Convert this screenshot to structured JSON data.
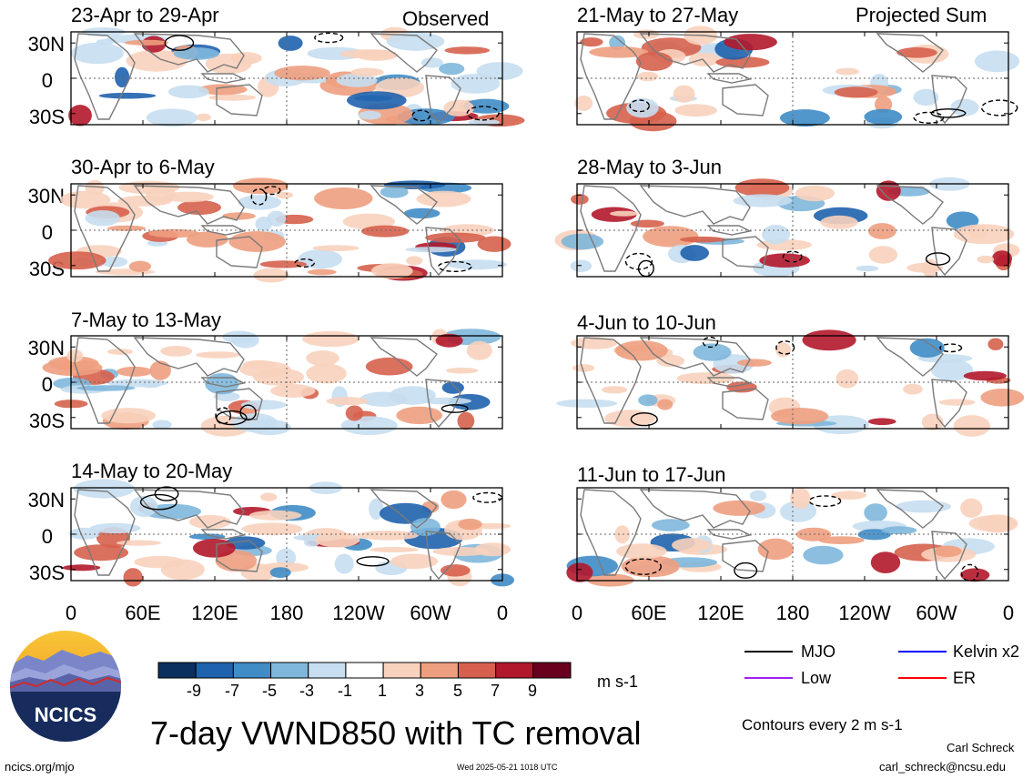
{
  "left_column": {
    "label": "Observed",
    "panels": [
      {
        "title": "23-Apr to 29-Apr"
      },
      {
        "title": "30-Apr to 6-May"
      },
      {
        "title": "7-May to 13-May"
      },
      {
        "title": "14-May to 20-May"
      }
    ]
  },
  "right_column": {
    "label": "Projected Sum",
    "panels": [
      {
        "title": "21-May to 27-May"
      },
      {
        "title": "28-May to 3-Jun"
      },
      {
        "title": "4-Jun to 10-Jun"
      },
      {
        "title": "11-Jun to 17-Jun"
      }
    ]
  },
  "y_ticks": [
    "30N",
    "0",
    "30S"
  ],
  "x_ticks": [
    "0",
    "60E",
    "120E",
    "180",
    "120W",
    "60W",
    "0"
  ],
  "colorbar": {
    "labels": [
      "-9",
      "-7",
      "-5",
      "-3",
      "-1",
      "1",
      "3",
      "5",
      "7",
      "9"
    ],
    "colors": [
      "#0b2f5e",
      "#1f62ad",
      "#3f8cc6",
      "#7eb7db",
      "#c6def0",
      "#ffffff",
      "#f8d2bd",
      "#ee9f7f",
      "#d6604d",
      "#b2182b",
      "#67001f"
    ],
    "units": "m s-1"
  },
  "legend": {
    "items": [
      {
        "label": "MJO",
        "color": "#000000"
      },
      {
        "label": "Kelvin x2",
        "color": "#0000ff"
      },
      {
        "label": "Low",
        "color": "#a020f0"
      },
      {
        "label": "ER",
        "color": "#ff0000"
      }
    ],
    "contour_note": "Contours every 2 m s-1"
  },
  "logo": {
    "text": "NCICS"
  },
  "main_title": "7-day VWND850 with TC removal",
  "footer": {
    "url": "ncics.org/mjo",
    "timestamp": "Wed 2025-05-21 1018 UTC",
    "author": "Carl Schreck",
    "email": "carl_schreck@ncsu.edu"
  }
}
